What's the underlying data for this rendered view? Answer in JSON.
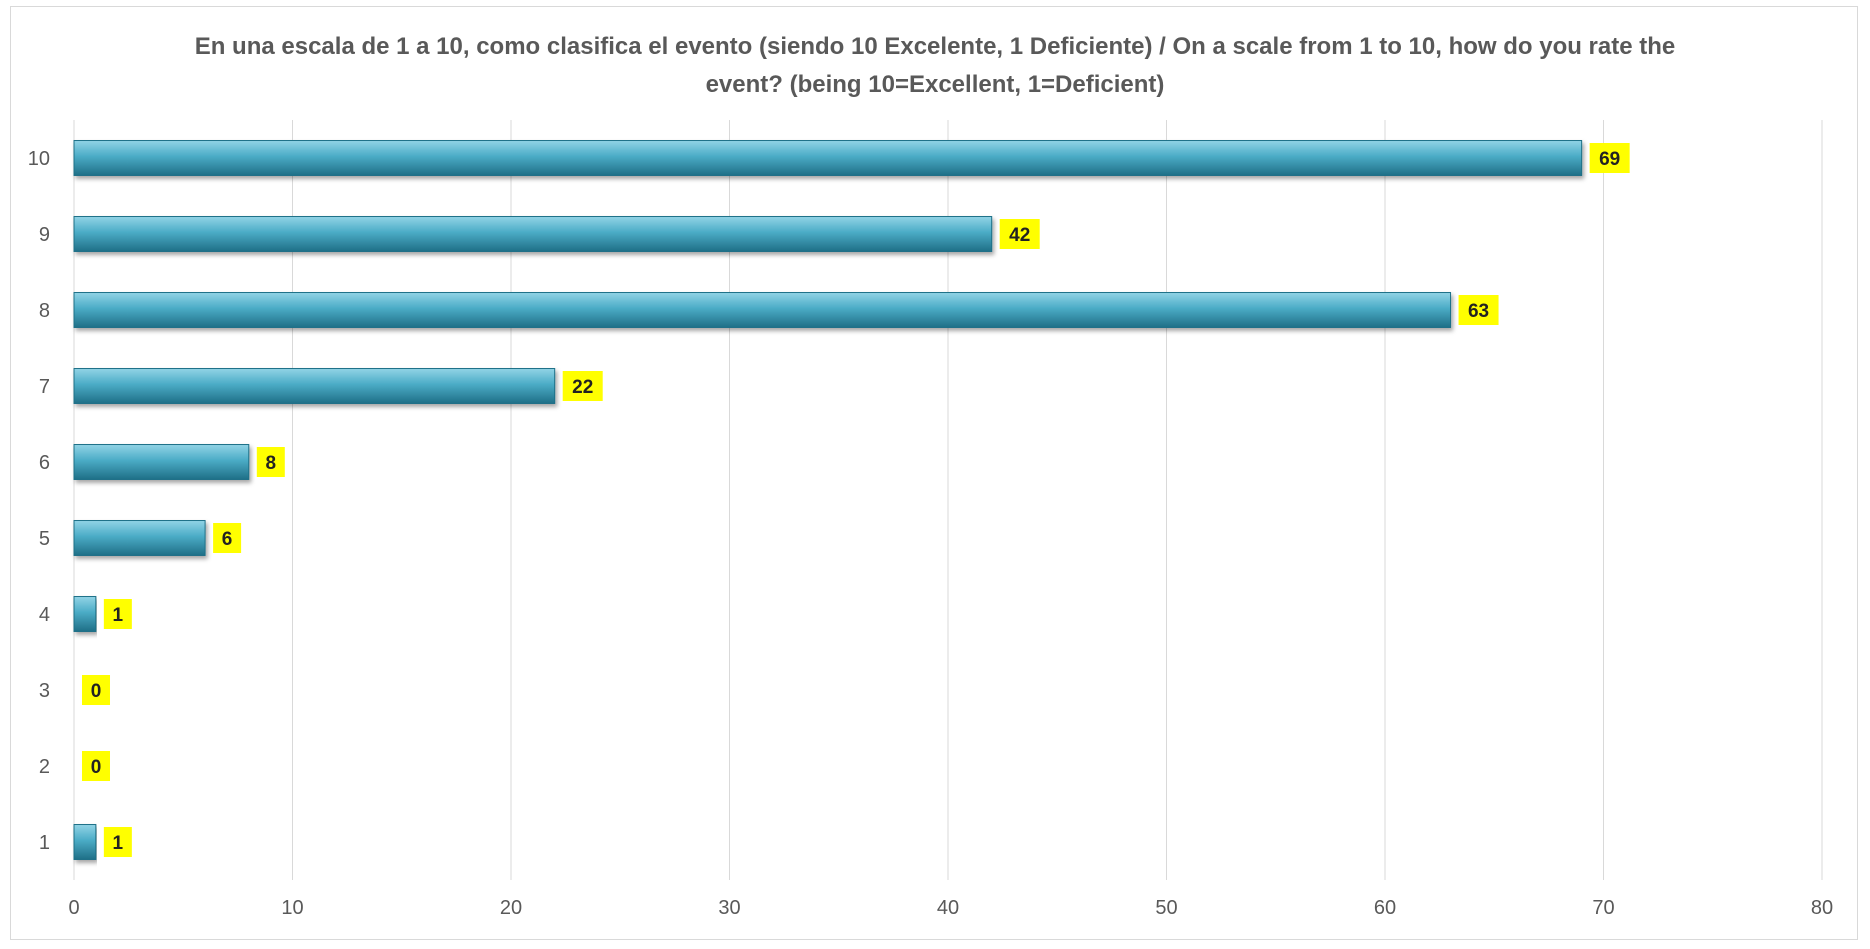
{
  "chart_data": {
    "type": "bar",
    "orientation": "horizontal",
    "title": "En una escala de 1 a 10, como clasifica el evento (siendo 10 Excelente, 1 Deficiente) / On a scale from 1 to 10, how do you rate the event? (being 10=Excellent, 1=Deficient)",
    "categories": [
      "10",
      "9",
      "8",
      "7",
      "6",
      "5",
      "4",
      "3",
      "2",
      "1"
    ],
    "values": [
      69,
      42,
      63,
      22,
      8,
      6,
      1,
      0,
      0,
      1
    ],
    "xlim": [
      0,
      80
    ],
    "x_ticks": [
      0,
      10,
      20,
      30,
      40,
      50,
      60,
      70,
      80
    ],
    "grid": true,
    "legend": "none",
    "colors": {
      "bar_fill": "#4bacc6",
      "bar_light": "#92d4e6",
      "bar_dark": "#1f6f87",
      "label_background": "#ffff00",
      "gridline": "#d9d9d9"
    }
  }
}
